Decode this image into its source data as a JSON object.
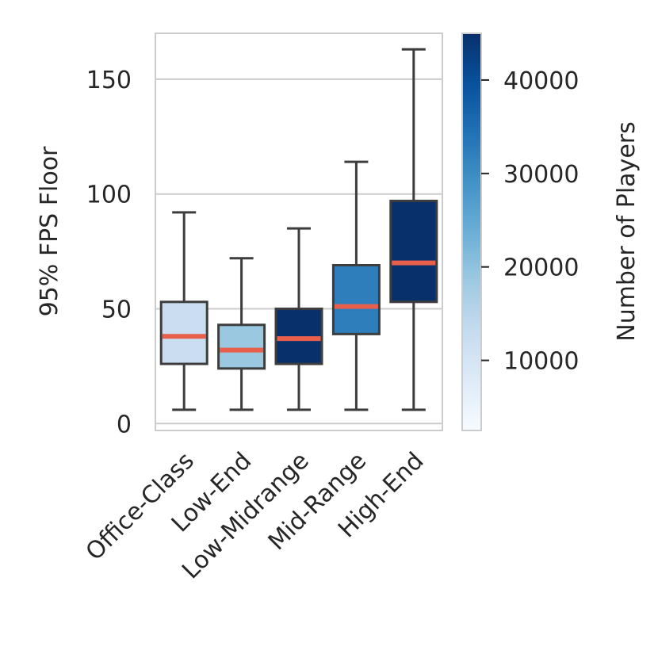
{
  "chart_data": {
    "type": "box",
    "title": "",
    "xlabel": "",
    "ylabel": "95% FPS Floor",
    "ylim": [
      -3,
      170
    ],
    "yticks": [
      0,
      50,
      100,
      150
    ],
    "grid": true,
    "categories": [
      "Office-Class",
      "Low-End",
      "Low-Midrange",
      "Mid-Range",
      "High-End"
    ],
    "boxes": [
      {
        "category": "Office-Class",
        "whisker_low": 6,
        "q1": 26,
        "median": 38,
        "q3": 53,
        "whisker_high": 92,
        "players": 10500,
        "color": "#cbdef1"
      },
      {
        "category": "Low-End",
        "whisker_low": 6,
        "q1": 24,
        "median": 32,
        "q3": 43,
        "whisker_high": 72,
        "players": 17500,
        "color": "#9ac8e0"
      },
      {
        "category": "Low-Midrange",
        "whisker_low": 6,
        "q1": 26,
        "median": 37,
        "q3": 50,
        "whisker_high": 85,
        "players": 45000,
        "color": "#08306b"
      },
      {
        "category": "Mid-Range",
        "whisker_low": 6,
        "q1": 39,
        "median": 51,
        "q3": 69,
        "whisker_high": 114,
        "players": 31000,
        "color": "#2e7ebc"
      },
      {
        "category": "High-End",
        "whisker_low": 6,
        "q1": 53,
        "median": 70,
        "q3": 97,
        "whisker_high": 163,
        "players": 44000,
        "color": "#08306b"
      }
    ],
    "median_color": "#e8604c",
    "colorbar": {
      "label": "Number of Players",
      "min": 2500,
      "max": 45000,
      "ticks": [
        10000,
        20000,
        30000,
        40000
      ],
      "colormap": "Blues",
      "stops": [
        "#f7fbff",
        "#deebf7",
        "#c6dbef",
        "#9ecae1",
        "#6baed6",
        "#4292c6",
        "#2171b5",
        "#08519c",
        "#08306b"
      ]
    }
  }
}
